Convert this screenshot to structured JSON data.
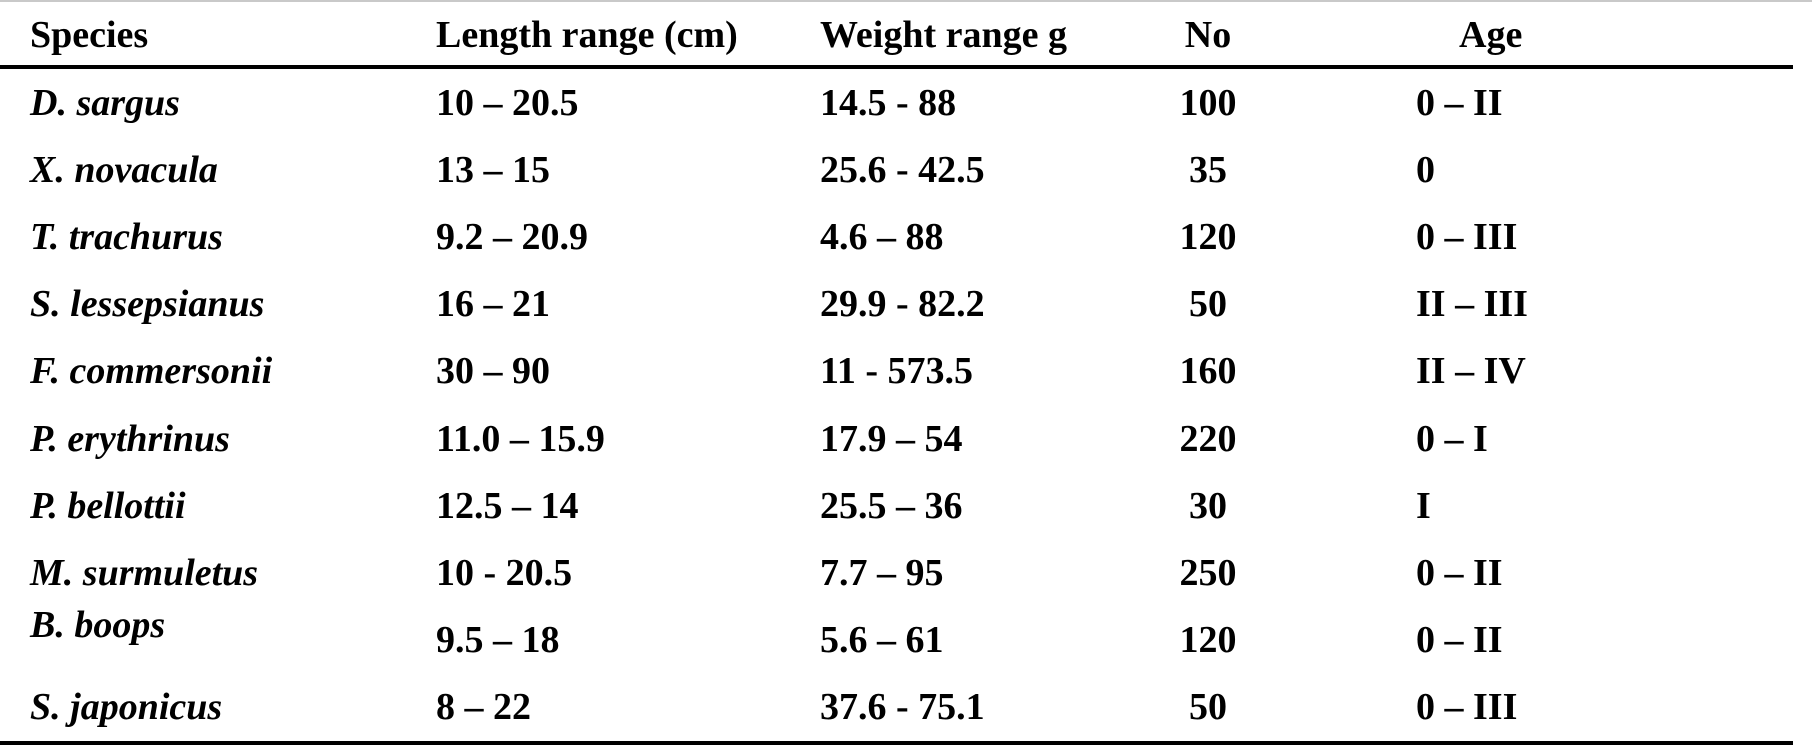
{
  "table": {
    "columns": [
      "Species",
      "Length range (cm)",
      "Weight range g",
      "No",
      "Age"
    ],
    "rows": [
      {
        "species": "D. sargus",
        "length_range": "10 – 20.5",
        "weight_range": "14.5 - 88",
        "no": "100",
        "age": "0 – II"
      },
      {
        "species": "X. novacula",
        "length_range": "13 – 15",
        "weight_range": "25.6 - 42.5",
        "no": "35",
        "age": "0"
      },
      {
        "species": "T. trachurus",
        "length_range": "9.2 – 20.9",
        "weight_range": "4.6 – 88",
        "no": "120",
        "age": "0 – III"
      },
      {
        "species": "S. lessepsianus",
        "length_range": "16 – 21",
        "weight_range": "29.9 - 82.2",
        "no": "50",
        "age": "II – III"
      },
      {
        "species": "F. commersonii",
        "length_range": "30 – 90",
        "weight_range": "11 - 573.5",
        "no": "160",
        "age": "II – IV"
      },
      {
        "species": "P. erythrinus",
        "length_range": "11.0 – 15.9",
        "weight_range": "17.9 – 54",
        "no": "220",
        "age": "0 – I"
      },
      {
        "species": "P. bellottii",
        "length_range": "12.5 – 14",
        "weight_range": "25.5 – 36",
        "no": "30",
        "age": "I"
      },
      {
        "species": "M. surmuletus",
        "length_range": "10 - 20.5",
        "weight_range": "7.7 – 95",
        "no": "250",
        "age": "0 – II"
      },
      {
        "species": "B. boops",
        "length_range": "9.5 – 18",
        "weight_range": "5.6 – 61",
        "no": "120",
        "age": "0 – II"
      },
      {
        "species": "S. japonicus",
        "length_range": "8 – 22",
        "weight_range": "37.6 - 75.1",
        "no": "50",
        "age": "0 – III"
      }
    ],
    "text_color": "#000000",
    "rule_color": "#000000",
    "background_color": "#ffffff"
  }
}
